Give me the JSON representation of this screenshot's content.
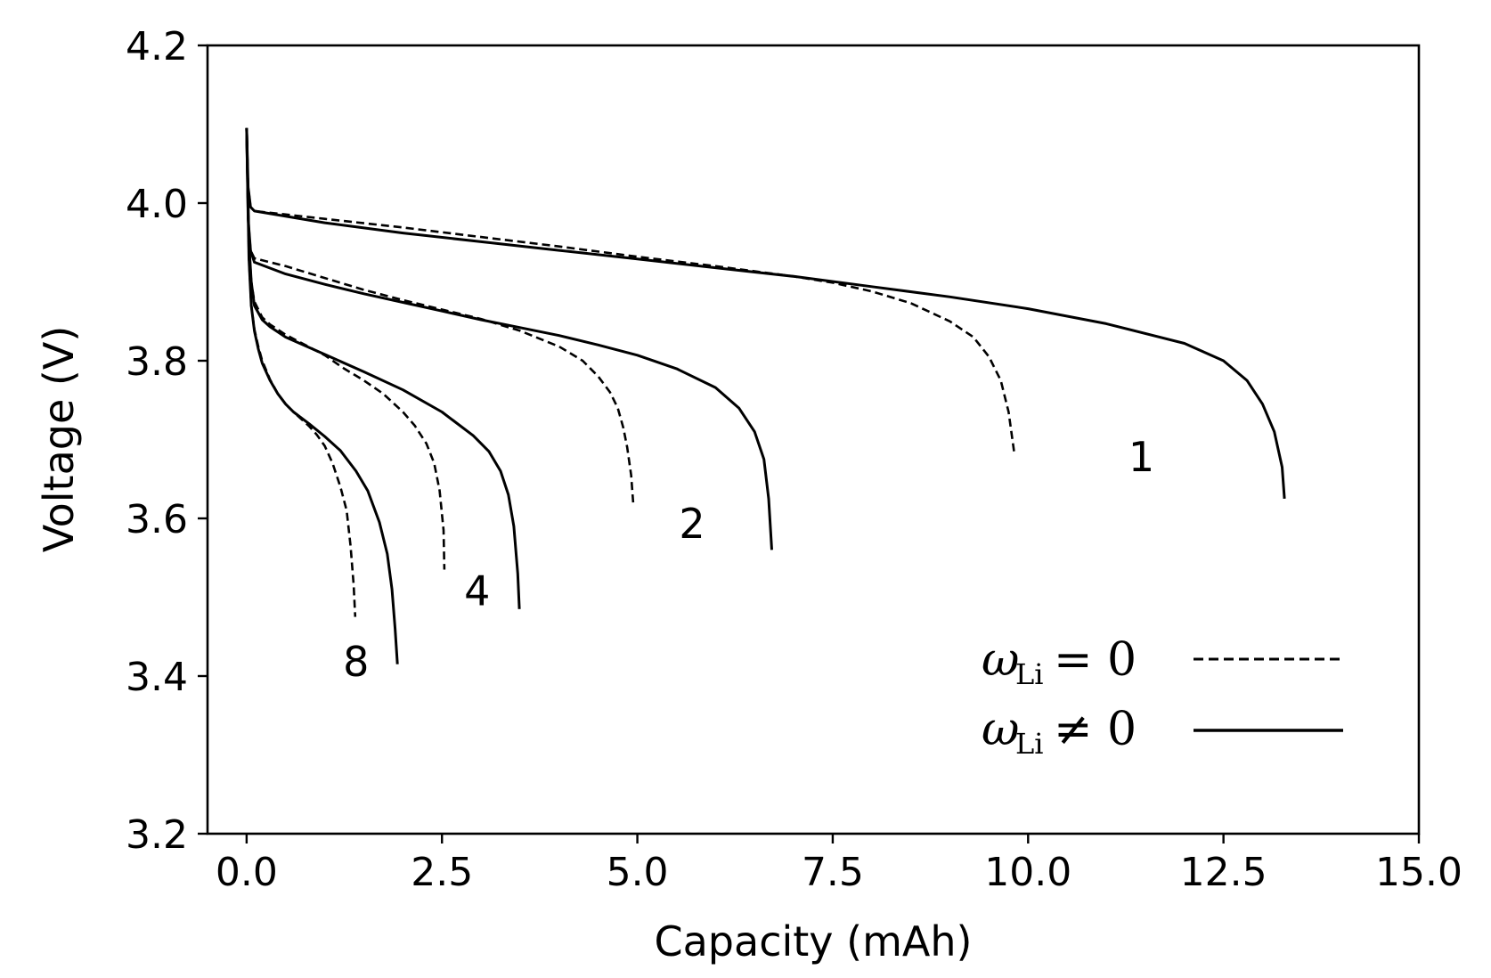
{
  "chart_data": {
    "type": "line",
    "title": "",
    "xlabel": "Capacity (mAh)",
    "ylabel": "Voltage (V)",
    "xlim": [
      -0.5,
      15.0
    ],
    "ylim": [
      3.2,
      4.2
    ],
    "xticks": [
      0.0,
      2.5,
      5.0,
      7.5,
      10.0,
      12.5,
      15.0
    ],
    "xtick_labels": [
      "0.0",
      "2.5",
      "5.0",
      "7.5",
      "10.0",
      "12.5",
      "15.0"
    ],
    "yticks": [
      3.2,
      3.4,
      3.6,
      3.8,
      4.0,
      4.2
    ],
    "ytick_labels": [
      "3.2",
      "3.4",
      "3.6",
      "3.8",
      "4.0",
      "4.2"
    ],
    "grid": false,
    "legend": {
      "placement": "bottom-right",
      "entries": [
        {
          "symbol": "ω",
          "subscript": "Li",
          "relation": "=",
          "value": "0",
          "style": "dashed"
        },
        {
          "symbol": "ω",
          "subscript": "Li",
          "relation": "≠",
          "value": "0",
          "style": "solid"
        }
      ]
    },
    "annotations": [
      {
        "text": "1",
        "x": 11.45,
        "y": 3.66
      },
      {
        "text": "2",
        "x": 5.7,
        "y": 3.575
      },
      {
        "text": "4",
        "x": 2.95,
        "y": 3.49
      },
      {
        "text": "8",
        "x": 1.4,
        "y": 3.4
      }
    ],
    "series": [
      {
        "name": "rate 1, ωLi = 0",
        "style": "dashed",
        "x": [
          0.0,
          0.02,
          0.05,
          0.1,
          1.0,
          2.0,
          3.0,
          4.0,
          5.0,
          6.0,
          7.0,
          7.5,
          8.0,
          8.5,
          9.0,
          9.3,
          9.5,
          9.65,
          9.75,
          9.82
        ],
        "y": [
          4.095,
          4.02,
          3.995,
          3.99,
          3.98,
          3.969,
          3.957,
          3.945,
          3.932,
          3.92,
          3.907,
          3.899,
          3.888,
          3.873,
          3.85,
          3.83,
          3.805,
          3.775,
          3.735,
          3.685
        ]
      },
      {
        "name": "rate 1, ωLi ≠ 0",
        "style": "solid",
        "x": [
          0.0,
          0.02,
          0.05,
          0.1,
          1.0,
          2.0,
          3.0,
          4.0,
          5.0,
          6.0,
          7.0,
          8.0,
          9.0,
          10.0,
          11.0,
          12.0,
          12.5,
          12.8,
          13.0,
          13.15,
          13.25,
          13.28
        ],
        "y": [
          4.095,
          4.02,
          3.995,
          3.99,
          3.975,
          3.962,
          3.951,
          3.94,
          3.929,
          3.918,
          3.907,
          3.894,
          3.881,
          3.866,
          3.847,
          3.822,
          3.8,
          3.775,
          3.745,
          3.71,
          3.665,
          3.625
        ]
      },
      {
        "name": "rate 2, ωLi = 0",
        "style": "dashed",
        "x": [
          0.0,
          0.02,
          0.05,
          0.1,
          0.5,
          1.0,
          1.5,
          2.0,
          2.5,
          3.0,
          3.5,
          4.0,
          4.3,
          4.5,
          4.65,
          4.75,
          4.82,
          4.87,
          4.92,
          4.95
        ],
        "y": [
          4.095,
          3.98,
          3.94,
          3.93,
          3.92,
          3.905,
          3.89,
          3.877,
          3.865,
          3.853,
          3.838,
          3.818,
          3.8,
          3.78,
          3.76,
          3.74,
          3.715,
          3.69,
          3.655,
          3.615
        ]
      },
      {
        "name": "rate 2, ωLi ≠ 0",
        "style": "solid",
        "x": [
          0.0,
          0.02,
          0.05,
          0.1,
          0.5,
          1.0,
          1.5,
          2.0,
          2.5,
          3.0,
          3.5,
          4.0,
          4.5,
          5.0,
          5.5,
          6.0,
          6.3,
          6.5,
          6.62,
          6.68,
          6.72
        ],
        "y": [
          4.095,
          3.98,
          3.94,
          3.925,
          3.91,
          3.897,
          3.885,
          3.874,
          3.863,
          3.852,
          3.842,
          3.832,
          3.82,
          3.807,
          3.79,
          3.766,
          3.74,
          3.71,
          3.675,
          3.625,
          3.56
        ]
      },
      {
        "name": "rate 4, ωLi = 0",
        "style": "dashed",
        "x": [
          0.0,
          0.03,
          0.06,
          0.1,
          0.2,
          0.3,
          0.5,
          0.75,
          1.0,
          1.25,
          1.5,
          1.75,
          2.0,
          2.15,
          2.3,
          2.4,
          2.47,
          2.52,
          2.53
        ],
        "y": [
          4.095,
          3.95,
          3.9,
          3.875,
          3.855,
          3.846,
          3.833,
          3.82,
          3.807,
          3.79,
          3.775,
          3.758,
          3.735,
          3.718,
          3.695,
          3.67,
          3.635,
          3.585,
          3.535
        ]
      },
      {
        "name": "rate 4, ωLi ≠ 0",
        "style": "solid",
        "x": [
          0.0,
          0.03,
          0.06,
          0.1,
          0.2,
          0.3,
          0.5,
          1.0,
          1.5,
          2.0,
          2.5,
          2.9,
          3.1,
          3.25,
          3.35,
          3.42,
          3.47,
          3.49
        ],
        "y": [
          4.095,
          3.95,
          3.9,
          3.87,
          3.852,
          3.843,
          3.83,
          3.808,
          3.786,
          3.763,
          3.735,
          3.705,
          3.685,
          3.66,
          3.63,
          3.59,
          3.53,
          3.485
        ]
      },
      {
        "name": "rate 8, ωLi = 0",
        "style": "dashed",
        "x": [
          0.0,
          0.03,
          0.06,
          0.1,
          0.15,
          0.2,
          0.3,
          0.4,
          0.5,
          0.6,
          0.8,
          0.9,
          1.0,
          1.1,
          1.2,
          1.28,
          1.33,
          1.37,
          1.39
        ],
        "y": [
          4.095,
          3.93,
          3.87,
          3.84,
          3.818,
          3.8,
          3.776,
          3.758,
          3.745,
          3.735,
          3.717,
          3.706,
          3.692,
          3.67,
          3.64,
          3.61,
          3.565,
          3.515,
          3.475
        ]
      },
      {
        "name": "rate 8, ωLi ≠ 0",
        "style": "solid",
        "x": [
          0.0,
          0.03,
          0.06,
          0.1,
          0.15,
          0.2,
          0.3,
          0.4,
          0.5,
          0.6,
          0.8,
          1.0,
          1.2,
          1.4,
          1.55,
          1.7,
          1.8,
          1.86,
          1.9,
          1.93
        ],
        "y": [
          4.095,
          3.93,
          3.87,
          3.838,
          3.815,
          3.797,
          3.775,
          3.758,
          3.745,
          3.735,
          3.72,
          3.704,
          3.686,
          3.66,
          3.635,
          3.595,
          3.555,
          3.51,
          3.46,
          3.415
        ]
      }
    ]
  }
}
